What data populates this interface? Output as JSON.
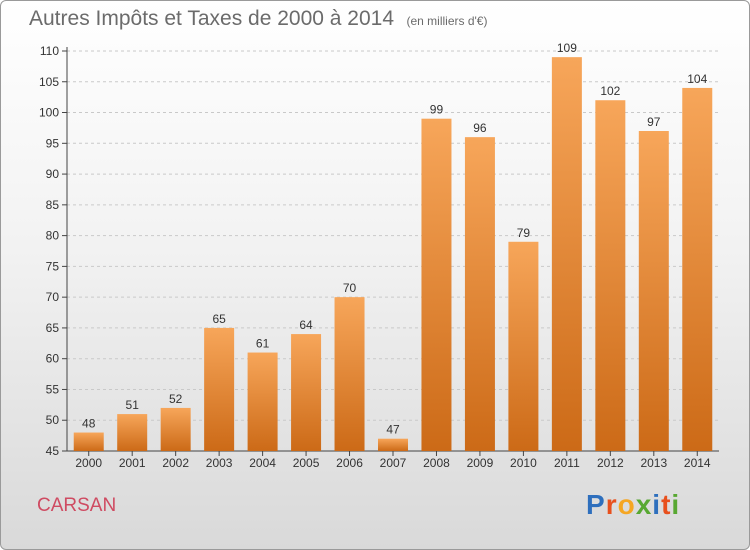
{
  "title": "Autres Impôts et Taxes de 2000 à 2014",
  "subtitle": "(en milliers d'€)",
  "commune": "CARSAN",
  "logo": {
    "text": "Proxiti",
    "letters": [
      {
        "ch": "P",
        "color": "#2e6fbd"
      },
      {
        "ch": "r",
        "color": "#e8501d"
      },
      {
        "ch": "o",
        "color": "#f5a623"
      },
      {
        "ch": "x",
        "color": "#58a832"
      },
      {
        "ch": "i",
        "color": "#2e6fbd"
      },
      {
        "ch": "t",
        "color": "#e8501d"
      },
      {
        "ch": "i",
        "color": "#58a832"
      }
    ]
  },
  "colors": {
    "bar_top": "#f7a65a",
    "bar_bottom": "#cc6a17",
    "axis": "#444444",
    "grid": "#c9c9c9",
    "title": "#6b6b6b",
    "commune": "#cf4b62"
  },
  "chart_data": {
    "type": "bar",
    "categories": [
      "2000",
      "2001",
      "2002",
      "2003",
      "2004",
      "2005",
      "2006",
      "2007",
      "2008",
      "2009",
      "2010",
      "2011",
      "2012",
      "2013",
      "2014"
    ],
    "values": [
      48,
      51,
      52,
      65,
      61,
      64,
      70,
      47,
      99,
      96,
      79,
      109,
      102,
      97,
      104
    ],
    "title": "Autres Impôts et Taxes de 2000 à 2014",
    "subtitle": "(en milliers d'€)",
    "xlabel": "",
    "ylabel": "",
    "ylim": [
      45,
      110
    ],
    "yticks": [
      45,
      50,
      55,
      60,
      65,
      70,
      75,
      80,
      85,
      90,
      95,
      100,
      105,
      110
    ],
    "grid": "dashed-horizontal",
    "data_labels": true
  }
}
